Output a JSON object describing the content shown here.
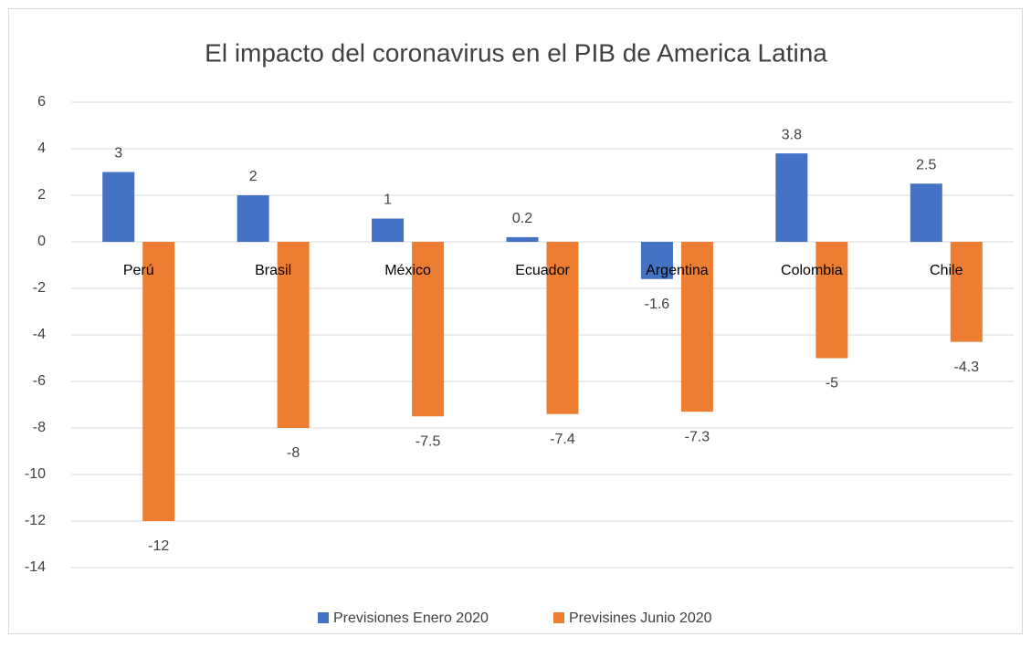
{
  "chart_data": {
    "type": "bar",
    "title": "El impacto del coronavirus en el PIB de America Latina",
    "categories": [
      "Perú",
      "Brasil",
      "México",
      "Ecuador",
      "Argentina",
      "Colombia",
      "Chile"
    ],
    "series": [
      {
        "name": "Previsiones Enero 2020",
        "color": "#4472c4",
        "values": [
          3,
          2,
          1,
          0.2,
          -1.6,
          3.8,
          2.5
        ]
      },
      {
        "name": "Previsines Junio 2020",
        "color": "#ed7d31",
        "values": [
          -12,
          -8,
          -7.5,
          -7.4,
          -7.3,
          -5,
          -4.3
        ]
      }
    ],
    "ylim": [
      -14,
      6
    ],
    "yticks": [
      -14,
      -12,
      -10,
      -8,
      -6,
      -4,
      -2,
      0,
      2,
      4,
      6
    ],
    "grid": true,
    "legend": "bottom"
  }
}
